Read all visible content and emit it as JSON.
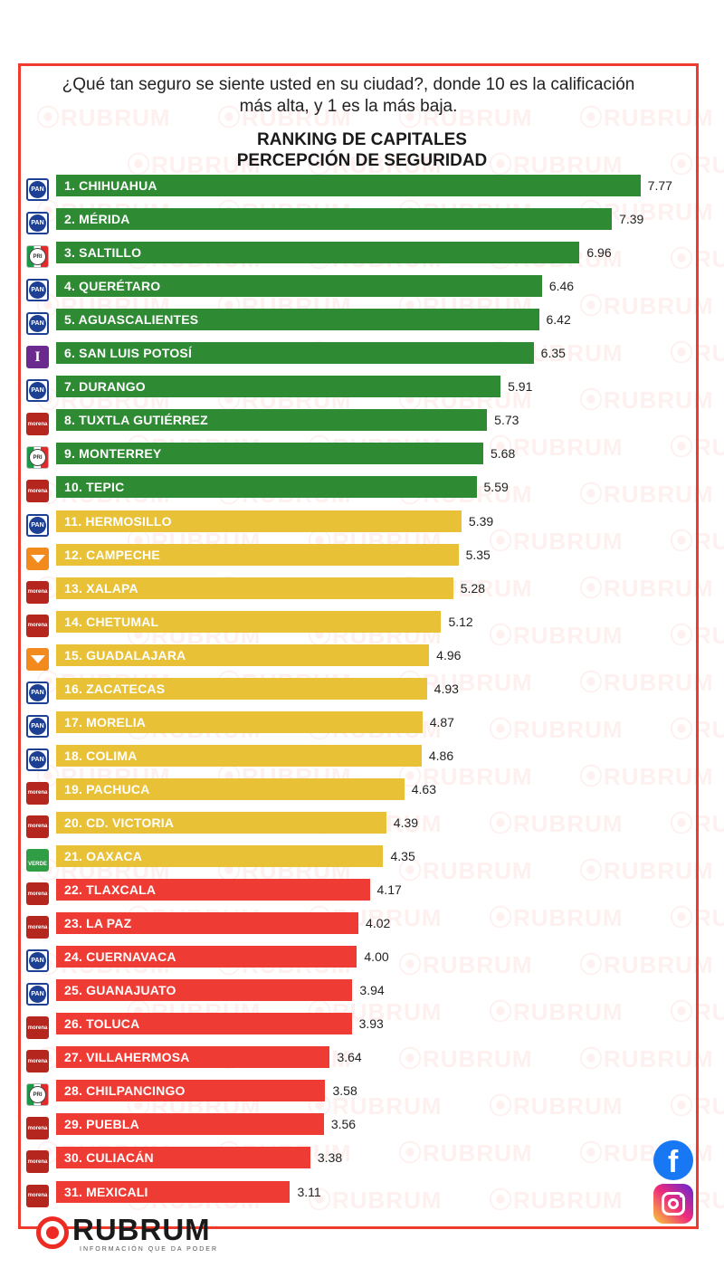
{
  "header": {
    "question": "¿Qué tan seguro se siente usted en su ciudad?, donde 10 es la calificación más alta, y  1 es la más baja.",
    "title_line1": "RANKING DE CAPITALES",
    "title_line2": "PERCEPCIÓN DE SEGURIDAD"
  },
  "watermark_text": "RUBRUM",
  "colors": {
    "green": "#2f8a34",
    "yellow": "#e8c136",
    "red": "#ee3b34",
    "frame": "#ee3b2e"
  },
  "party_logos": {
    "PAN": "PAN",
    "PRI": "PRI",
    "morena": "morena",
    "I": "I",
    "MC": "",
    "VERDE": "VERDE"
  },
  "chart_data": {
    "type": "bar",
    "orientation": "horizontal",
    "title": "RANKING DE CAPITALES PERCEPCIÓN DE SEGURIDAD",
    "xlim": [
      0,
      10
    ],
    "grid": false,
    "legend": "none",
    "categories": [
      "1. CHIHUAHUA",
      "2. MÉRIDA",
      "3. SALTILLO",
      "4. QUERÉTARO",
      "5. AGUASCALIENTES",
      "6. SAN LUIS POTOSÍ",
      "7. DURANGO",
      "8. TUXTLA GUTIÉRREZ",
      "9. MONTERREY",
      "10. TEPIC",
      "11. HERMOSILLO",
      "12. CAMPECHE",
      "13. XALAPA",
      "14. CHETUMAL",
      "15. GUADALAJARA",
      "16. ZACATECAS",
      "17. MORELIA",
      "18. COLIMA",
      "19. PACHUCA",
      "20. CD. VICTORIA",
      "21. OAXACA",
      "22. TLAXCALA",
      "23. LA PAZ",
      "24. CUERNAVACA",
      "25. GUANAJUATO",
      "26. TOLUCA",
      "27. VILLAHERMOSA",
      "28. CHILPANCINGO",
      "29. PUEBLA",
      "30. CULIACÁN",
      "31. MEXICALI"
    ],
    "values": [
      7.77,
      7.39,
      6.96,
      6.46,
      6.42,
      6.35,
      5.91,
      5.73,
      5.68,
      5.59,
      5.39,
      5.35,
      5.28,
      5.12,
      4.96,
      4.93,
      4.87,
      4.86,
      4.63,
      4.39,
      4.35,
      4.17,
      4.02,
      4.0,
      3.94,
      3.93,
      3.64,
      3.58,
      3.56,
      3.38,
      3.11
    ],
    "value_labels": [
      "7.77",
      "7.39",
      "6.96",
      "6.46",
      "6.42",
      "6.35",
      "5.91",
      "5.73",
      "5.68",
      "5.59",
      "5.39",
      "5.35",
      "5.28",
      "5.12",
      "4.96",
      "4.93",
      "4.87",
      "4.86",
      "4.63",
      "4.39",
      "4.35",
      "4.17",
      "4.02",
      "4.00",
      "3.94",
      "3.93",
      "3.64",
      "3.58",
      "3.56",
      "3.38",
      "3.11"
    ],
    "bar_colors": [
      "green",
      "green",
      "green",
      "green",
      "green",
      "green",
      "green",
      "green",
      "green",
      "green",
      "yellow",
      "yellow",
      "yellow",
      "yellow",
      "yellow",
      "yellow",
      "yellow",
      "yellow",
      "yellow",
      "yellow",
      "yellow",
      "red",
      "red",
      "red",
      "red",
      "red",
      "red",
      "red",
      "red",
      "red",
      "red"
    ],
    "parties": [
      "PAN",
      "PAN",
      "PRI",
      "PAN",
      "PAN",
      "I",
      "PAN",
      "morena",
      "PRI",
      "morena",
      "PAN",
      "MC",
      "morena",
      "morena",
      "MC",
      "PAN",
      "PAN",
      "PAN",
      "morena",
      "morena",
      "VERDE",
      "morena",
      "morena",
      "PAN",
      "PAN",
      "morena",
      "morena",
      "PRI",
      "morena",
      "morena",
      "morena"
    ]
  },
  "footer": {
    "brand_name": "RUBRUM",
    "brand_tagline": "INFORMACIÓN QUE DA PODER",
    "facebook_icon": "facebook-icon",
    "instagram_icon": "instagram-icon",
    "facebook_glyph": "f"
  }
}
